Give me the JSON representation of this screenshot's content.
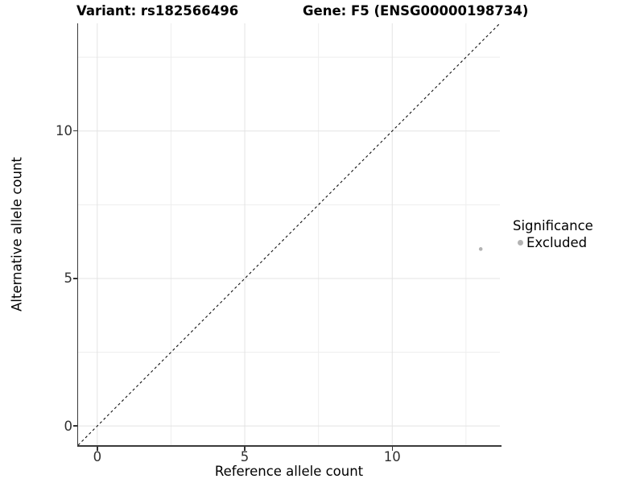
{
  "titles": {
    "variant": "Variant: rs182566496",
    "gene": "Gene: F5 (ENSG00000198734)"
  },
  "legend": {
    "title": "Significance",
    "items": [
      {
        "label": "Excluded",
        "color": "#b3b3b3"
      }
    ]
  },
  "chart_data": {
    "type": "scatter",
    "title_left": "Variant: rs182566496",
    "title_right": "Gene: F5 (ENSG00000198734)",
    "xlabel": "Reference allele count",
    "ylabel": "Alternative allele count",
    "x_range": [
      -0.65,
      13.65
    ],
    "y_range": [
      -0.65,
      13.65
    ],
    "x_ticks": [
      0,
      5,
      10
    ],
    "y_ticks": [
      0,
      5,
      10
    ],
    "x_minor_gridlines": [
      2.5,
      7.5,
      12.5
    ],
    "y_minor_gridlines": [
      2.5,
      7.5,
      12.5
    ],
    "grid": true,
    "legend_position": "right",
    "series": [
      {
        "name": "Excluded",
        "color": "#b3b3b3",
        "points": [
          {
            "x": 13,
            "y": 6
          }
        ]
      }
    ],
    "reference_line": {
      "type": "identity",
      "slope": 1,
      "intercept": 0,
      "style": "dashed",
      "color": "#111111"
    },
    "style": {
      "major_grid_color": "#e3e3e3",
      "minor_grid_color": "#eeeeee",
      "point_radius": 2.3
    }
  }
}
